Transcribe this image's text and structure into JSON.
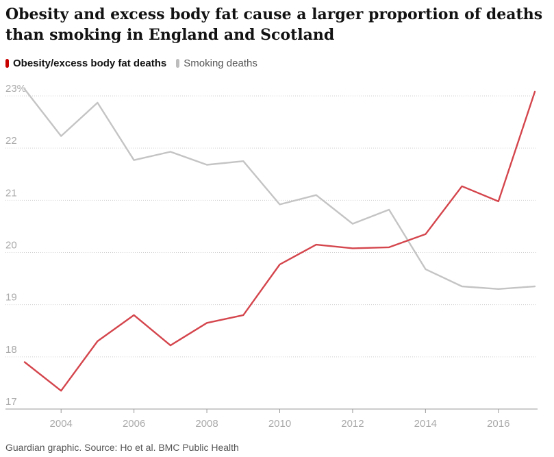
{
  "title": "Obesity and excess body fat cause a larger proportion of deaths than smoking in England and Scotland",
  "legend": [
    {
      "label": "Obesity/excess body fat deaths",
      "color": "#c70000"
    },
    {
      "label": "Smoking deaths",
      "color": "#bdbdbd"
    }
  ],
  "source": "Guardian graphic. Source: Ho et al. BMC Public Health",
  "colors": {
    "obesity": "#d4454c",
    "smoking": "#c4c4c4",
    "grid": "#cfcfcf",
    "axis": "#999999",
    "tick": "#aaaaaa"
  },
  "chart_data": {
    "type": "line",
    "title": "Obesity and excess body fat cause a larger proportion of deaths than smoking in England and Scotland",
    "xlabel": "",
    "ylabel": "",
    "xlim": [
      2003,
      2017
    ],
    "ylim": [
      17,
      23
    ],
    "y_ticks": [
      17,
      18,
      19,
      20,
      21,
      22,
      23
    ],
    "y_tick_labels": [
      "17",
      "18",
      "19",
      "20",
      "21",
      "22",
      "23%"
    ],
    "x_ticks": [
      2004,
      2006,
      2008,
      2010,
      2012,
      2014,
      2016
    ],
    "x_tick_labels": [
      "2004",
      "2006",
      "2008",
      "2010",
      "2012",
      "2014",
      "2016"
    ],
    "x": [
      2003,
      2004,
      2005,
      2006,
      2007,
      2008,
      2009,
      2010,
      2011,
      2012,
      2013,
      2014,
      2015,
      2016,
      2017
    ],
    "series": [
      {
        "name": "Obesity/excess body fat deaths",
        "color": "#d4454c",
        "values": [
          17.9,
          17.35,
          18.3,
          18.8,
          18.22,
          18.65,
          18.8,
          19.77,
          20.15,
          20.08,
          20.1,
          20.35,
          21.27,
          20.98,
          23.08
        ]
      },
      {
        "name": "Smoking deaths",
        "color": "#c4c4c4",
        "values": [
          23.13,
          22.23,
          22.87,
          21.77,
          21.93,
          21.68,
          21.75,
          20.92,
          21.1,
          20.55,
          20.82,
          19.68,
          19.35,
          19.3,
          19.35
        ]
      }
    ],
    "legend": "top-left",
    "grid": true
  }
}
